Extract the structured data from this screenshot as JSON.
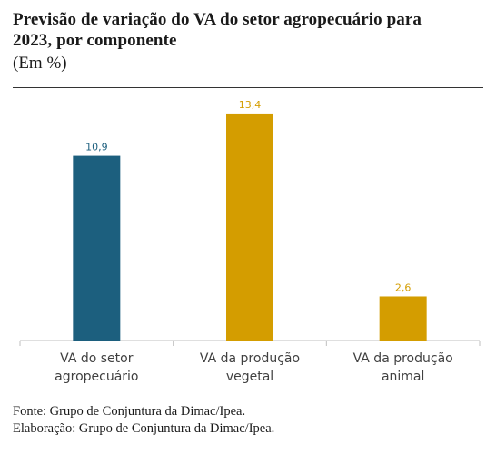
{
  "header": {
    "title_line1": "Previsão de variação do VA do setor agropecuário para",
    "title_line2": "2023, por componente",
    "subtitle": "(Em %)"
  },
  "chart_data": {
    "type": "bar",
    "title": "Previsão de variação do VA do setor agropecuário para 2023, por componente",
    "subtitle": "(Em %)",
    "xlabel": "",
    "ylabel": "",
    "categories": [
      [
        "VA do setor",
        "agropecuário"
      ],
      [
        "VA da produção",
        "vegetal"
      ],
      [
        "VA da produção",
        "animal"
      ]
    ],
    "values": [
      10.9,
      13.4,
      2.6
    ],
    "value_labels": [
      "10,9",
      "13,4",
      "2,6"
    ],
    "colors": [
      "#1c5f7e",
      "#d49d00",
      "#d49d00"
    ],
    "label_colors": [
      "#1c5f7e",
      "#d49d00",
      "#d49d00"
    ],
    "ylim": [
      0,
      14.2
    ],
    "grid": false,
    "legend": "none"
  },
  "footer": {
    "source": "Fonte: Grupo de Conjuntura da Dimac/Ipea.",
    "elaboration": "Elaboração: Grupo de Conjuntura da Dimac/Ipea."
  }
}
